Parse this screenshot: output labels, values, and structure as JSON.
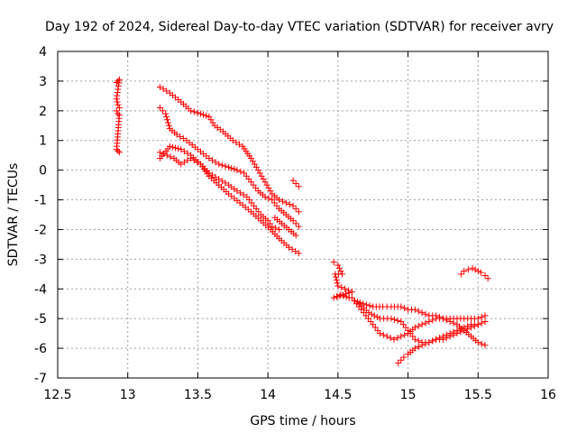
{
  "chart_data": {
    "type": "scatter",
    "title": "Day 192 of 2024, Sidereal Day-to-day VTEC variation (SDTVAR) for receiver avry",
    "xlabel": "GPS time / hours",
    "ylabel": "SDTVAR / TECUs",
    "xlim": [
      12.5,
      16
    ],
    "ylim": [
      -7,
      4
    ],
    "xticks": [
      12.5,
      13,
      13.5,
      14,
      14.5,
      15,
      15.5,
      16
    ],
    "xtick_labels": [
      "12.5",
      "13",
      "13.5",
      "14",
      "14.5",
      "15",
      "15.5",
      "16"
    ],
    "yticks": [
      -7,
      -6,
      -5,
      -4,
      -3,
      -2,
      -1,
      0,
      1,
      2,
      3,
      4
    ],
    "ytick_labels": [
      "-7",
      "-6",
      "-5",
      "-4",
      "-3",
      "-2",
      "-1",
      "0",
      "1",
      "2",
      "3",
      "4"
    ],
    "grid": true,
    "marker": "+",
    "marker_color": "#ff0000",
    "series": [
      {
        "name": "cluster-13.0",
        "points": [
          [
            12.92,
            2.95
          ],
          [
            12.93,
            3.0
          ],
          [
            12.94,
            3.05
          ],
          [
            12.92,
            2.4
          ],
          [
            12.93,
            2.2
          ],
          [
            12.94,
            2.1
          ],
          [
            12.92,
            2.0
          ],
          [
            12.93,
            1.9
          ],
          [
            12.94,
            1.85
          ],
          [
            12.92,
            0.7
          ],
          [
            12.93,
            0.65
          ],
          [
            12.94,
            0.6
          ]
        ]
      },
      {
        "name": "track-upper",
        "points": [
          [
            13.23,
            2.8
          ],
          [
            13.3,
            2.6
          ],
          [
            13.38,
            2.3
          ],
          [
            13.45,
            2.0
          ],
          [
            13.52,
            1.9
          ],
          [
            13.58,
            1.8
          ],
          [
            13.62,
            1.5
          ],
          [
            13.68,
            1.3
          ],
          [
            13.75,
            1.0
          ],
          [
            13.82,
            0.8
          ],
          [
            13.88,
            0.4
          ],
          [
            13.93,
            0.0
          ],
          [
            13.98,
            -0.4
          ],
          [
            14.03,
            -0.8
          ],
          [
            14.08,
            -1.0
          ],
          [
            14.13,
            -1.1
          ],
          [
            14.18,
            -1.2
          ],
          [
            14.22,
            -1.4
          ]
        ]
      },
      {
        "name": "track-a",
        "points": [
          [
            13.23,
            2.1
          ],
          [
            13.27,
            1.9
          ],
          [
            13.3,
            1.4
          ],
          [
            13.35,
            1.2
          ],
          [
            13.42,
            1.0
          ],
          [
            13.5,
            0.7
          ],
          [
            13.58,
            0.4
          ],
          [
            13.65,
            0.2
          ],
          [
            13.72,
            0.1
          ],
          [
            13.78,
            0.0
          ],
          [
            13.83,
            -0.1
          ],
          [
            13.88,
            -0.4
          ],
          [
            13.93,
            -0.7
          ],
          [
            13.98,
            -0.9
          ],
          [
            14.03,
            -1.0
          ],
          [
            14.08,
            -1.3
          ],
          [
            14.13,
            -1.5
          ],
          [
            14.18,
            -1.7
          ],
          [
            14.22,
            -1.9
          ]
        ]
      },
      {
        "name": "track-b",
        "points": [
          [
            13.23,
            0.6
          ],
          [
            13.28,
            0.5
          ],
          [
            13.33,
            0.4
          ],
          [
            13.38,
            0.2
          ],
          [
            13.45,
            0.4
          ],
          [
            13.52,
            0.2
          ],
          [
            13.58,
            -0.1
          ],
          [
            13.65,
            -0.3
          ],
          [
            13.72,
            -0.5
          ],
          [
            13.78,
            -0.7
          ],
          [
            13.85,
            -0.9
          ],
          [
            13.9,
            -1.2
          ],
          [
            13.95,
            -1.5
          ],
          [
            14.0,
            -1.7
          ],
          [
            14.03,
            -1.9
          ],
          [
            14.08,
            -2.0
          ]
        ]
      },
      {
        "name": "track-c",
        "points": [
          [
            13.23,
            0.4
          ],
          [
            13.3,
            0.8
          ],
          [
            13.38,
            0.7
          ],
          [
            13.45,
            0.5
          ],
          [
            13.52,
            0.2
          ],
          [
            13.58,
            -0.2
          ],
          [
            13.65,
            -0.5
          ],
          [
            13.72,
            -0.8
          ],
          [
            13.8,
            -1.1
          ],
          [
            13.88,
            -1.4
          ],
          [
            13.95,
            -1.7
          ],
          [
            14.02,
            -2.0
          ],
          [
            14.08,
            -2.3
          ],
          [
            14.15,
            -2.6
          ],
          [
            14.22,
            -2.8
          ]
        ]
      },
      {
        "name": "track-d",
        "points": [
          [
            14.05,
            -1.6
          ],
          [
            14.1,
            -1.8
          ],
          [
            14.15,
            -2.0
          ],
          [
            14.2,
            -2.2
          ]
        ]
      },
      {
        "name": "cluster-14.2",
        "points": [
          [
            14.18,
            -0.35
          ],
          [
            14.2,
            -0.45
          ],
          [
            14.22,
            -0.55
          ]
        ]
      },
      {
        "name": "cluster-14.5",
        "points": [
          [
            14.47,
            -3.1
          ],
          [
            14.5,
            -3.2
          ],
          [
            14.53,
            -3.5
          ],
          [
            14.48,
            -3.5
          ],
          [
            14.5,
            -3.9
          ],
          [
            14.55,
            -4.0
          ],
          [
            14.6,
            -4.1
          ],
          [
            14.47,
            -4.3
          ],
          [
            14.52,
            -4.2
          ],
          [
            14.58,
            -4.3
          ]
        ]
      },
      {
        "name": "track-bottom-a",
        "points": [
          [
            14.6,
            -4.3
          ],
          [
            14.65,
            -4.6
          ],
          [
            14.7,
            -4.9
          ],
          [
            14.75,
            -5.2
          ],
          [
            14.8,
            -5.5
          ],
          [
            14.85,
            -5.6
          ],
          [
            14.9,
            -5.7
          ],
          [
            14.95,
            -5.6
          ],
          [
            15.0,
            -5.5
          ],
          [
            15.05,
            -5.3
          ],
          [
            15.1,
            -5.2
          ],
          [
            15.15,
            -5.1
          ],
          [
            15.2,
            -5.0
          ],
          [
            15.25,
            -5.0
          ],
          [
            15.3,
            -5.1
          ],
          [
            15.35,
            -5.2
          ],
          [
            15.4,
            -5.4
          ],
          [
            15.45,
            -5.6
          ],
          [
            15.5,
            -5.8
          ],
          [
            15.55,
            -5.9
          ]
        ]
      },
      {
        "name": "track-bottom-b",
        "points": [
          [
            14.62,
            -4.4
          ],
          [
            14.68,
            -4.5
          ],
          [
            14.75,
            -4.6
          ],
          [
            14.82,
            -4.6
          ],
          [
            14.88,
            -4.6
          ],
          [
            14.95,
            -4.6
          ],
          [
            15.0,
            -4.7
          ],
          [
            15.05,
            -4.7
          ],
          [
            15.1,
            -4.8
          ],
          [
            15.15,
            -4.9
          ],
          [
            15.2,
            -4.9
          ],
          [
            15.25,
            -5.0
          ],
          [
            15.3,
            -5.0
          ],
          [
            15.35,
            -5.0
          ],
          [
            15.4,
            -5.0
          ],
          [
            15.45,
            -5.0
          ],
          [
            15.5,
            -5.0
          ],
          [
            15.55,
            -4.9
          ]
        ]
      },
      {
        "name": "track-bottom-c",
        "points": [
          [
            14.65,
            -4.5
          ],
          [
            14.72,
            -4.8
          ],
          [
            14.8,
            -5.0
          ],
          [
            14.88,
            -5.0
          ],
          [
            14.95,
            -5.1
          ],
          [
            15.0,
            -5.4
          ],
          [
            15.05,
            -5.7
          ],
          [
            15.1,
            -5.8
          ],
          [
            15.15,
            -5.8
          ],
          [
            15.2,
            -5.7
          ],
          [
            15.25,
            -5.6
          ],
          [
            15.3,
            -5.5
          ],
          [
            15.35,
            -5.4
          ],
          [
            15.4,
            -5.3
          ],
          [
            15.45,
            -5.2
          ],
          [
            15.5,
            -5.2
          ],
          [
            15.55,
            -5.1
          ]
        ]
      },
      {
        "name": "track-bottom-d",
        "points": [
          [
            14.93,
            -6.5
          ],
          [
            14.97,
            -6.3
          ],
          [
            15.0,
            -6.2
          ],
          [
            15.05,
            -6.0
          ],
          [
            15.1,
            -5.9
          ],
          [
            15.15,
            -5.8
          ],
          [
            15.2,
            -5.7
          ],
          [
            15.25,
            -5.7
          ],
          [
            15.3,
            -5.6
          ],
          [
            15.35,
            -5.5
          ],
          [
            15.4,
            -5.4
          ],
          [
            15.45,
            -5.3
          ],
          [
            15.5,
            -5.2
          ]
        ]
      },
      {
        "name": "cluster-15.45",
        "points": [
          [
            15.38,
            -3.5
          ],
          [
            15.4,
            -3.4
          ],
          [
            15.43,
            -3.35
          ],
          [
            15.46,
            -3.3
          ],
          [
            15.48,
            -3.35
          ],
          [
            15.5,
            -3.4
          ],
          [
            15.52,
            -3.45
          ],
          [
            15.55,
            -3.55
          ],
          [
            15.57,
            -3.65
          ]
        ]
      }
    ]
  }
}
